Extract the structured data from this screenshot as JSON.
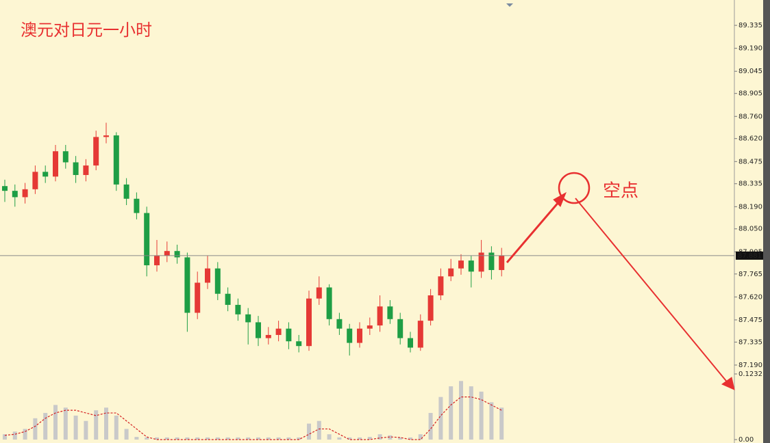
{
  "chart_data": [
    {
      "type": "candlestick",
      "title": "澳元对日元一小时",
      "annotation": "空点",
      "up_color": "#e53935",
      "down_color": "#1e9e45",
      "open": [
        88.32,
        88.29,
        88.25,
        88.3,
        88.41,
        88.38,
        88.54,
        88.47,
        88.39,
        88.45,
        88.63,
        88.64,
        88.33,
        88.24,
        88.15,
        87.82,
        87.88,
        87.91,
        87.87,
        87.52,
        87.71,
        87.8,
        87.64,
        87.57,
        87.51,
        87.46,
        87.36,
        87.38,
        87.42,
        87.34,
        87.31,
        87.61,
        87.68,
        87.48,
        87.42,
        87.33,
        87.42,
        87.44,
        87.56,
        87.48,
        87.36,
        87.3,
        87.47,
        87.63,
        87.75,
        87.8,
        87.85,
        87.78,
        87.9,
        87.79
      ],
      "high": [
        88.36,
        88.33,
        88.34,
        88.45,
        88.45,
        88.58,
        88.58,
        88.51,
        88.49,
        88.67,
        88.72,
        88.66,
        88.37,
        88.28,
        88.19,
        87.98,
        87.97,
        87.95,
        87.9,
        87.78,
        87.88,
        87.84,
        87.68,
        87.61,
        87.55,
        87.5,
        87.43,
        87.47,
        87.46,
        87.38,
        87.66,
        87.75,
        87.7,
        87.52,
        87.45,
        87.46,
        87.49,
        87.63,
        87.6,
        87.52,
        87.4,
        87.51,
        87.67,
        87.8,
        87.86,
        87.89,
        87.88,
        87.98,
        87.94,
        87.93
      ],
      "low": [
        88.22,
        88.19,
        88.21,
        88.27,
        88.34,
        88.35,
        88.43,
        88.34,
        88.35,
        88.42,
        88.59,
        88.29,
        88.2,
        88.11,
        87.75,
        87.78,
        87.84,
        87.83,
        87.4,
        87.48,
        87.67,
        87.6,
        87.53,
        87.47,
        87.32,
        87.31,
        87.32,
        87.34,
        87.29,
        87.27,
        87.28,
        87.57,
        87.44,
        87.38,
        87.25,
        87.3,
        87.38,
        87.4,
        87.45,
        87.32,
        87.27,
        87.28,
        87.44,
        87.6,
        87.72,
        87.76,
        87.68,
        87.74,
        87.73,
        87.75
      ],
      "close": [
        88.29,
        88.25,
        88.3,
        88.41,
        88.38,
        88.54,
        88.47,
        88.39,
        88.45,
        88.63,
        88.64,
        88.33,
        88.24,
        88.15,
        87.82,
        87.88,
        87.91,
        87.87,
        87.52,
        87.71,
        87.8,
        87.64,
        87.57,
        87.51,
        87.46,
        87.36,
        87.38,
        87.42,
        87.34,
        87.31,
        87.61,
        87.68,
        87.48,
        87.42,
        87.33,
        87.42,
        87.44,
        87.56,
        87.48,
        87.36,
        87.3,
        87.47,
        87.63,
        87.75,
        87.8,
        87.85,
        87.78,
        87.9,
        87.79,
        87.881
      ],
      "last_price": 87.881,
      "ylim": [
        87.164,
        89.495
      ],
      "yticks": [
        89.335,
        {
          "value": 89.19,
          "label": "89.190"
        },
        89.045,
        88.905,
        {
          "value": 88.76,
          "label": "88.760"
        },
        {
          "value": 88.62,
          "label": "88.620"
        },
        88.475,
        88.335,
        {
          "value": 88.19,
          "label": "88.190"
        },
        {
          "value": 88.05,
          "label": "88.050"
        },
        87.905,
        87.765,
        {
          "value": 87.62,
          "label": "87.620"
        },
        87.475,
        87.335,
        {
          "value": 87.19,
          "label": "87.190"
        }
      ]
    },
    {
      "type": "macd",
      "bar_color": "#c9c9c9",
      "line_color": "#d42020",
      "histogram": [
        0.01,
        0.015,
        0.02,
        0.04,
        0.05,
        0.065,
        0.06,
        0.045,
        0.035,
        0.055,
        0.06,
        0.045,
        0.02,
        0.005,
        0.004,
        0.004,
        0.004,
        0.004,
        0.004,
        0.004,
        0.004,
        0.004,
        0.004,
        0.004,
        0.004,
        0.004,
        0.004,
        0.004,
        0.004,
        0.004,
        0.03,
        0.035,
        0.01,
        0.004,
        0.004,
        0.004,
        0.005,
        0.01,
        0.008,
        0.004,
        0.004,
        0.01,
        0.05,
        0.08,
        0.1,
        0.11,
        0.1,
        0.09,
        0.07,
        0.06
      ],
      "signal": [
        0.008,
        0.01,
        0.015,
        0.025,
        0.04,
        0.05,
        0.055,
        0.055,
        0.05,
        0.045,
        0.05,
        0.05,
        0.035,
        0.02,
        0.005,
        0,
        0,
        0,
        0,
        0,
        0,
        0,
        0,
        0,
        0,
        0,
        0,
        0,
        0,
        0,
        0.01,
        0.02,
        0.02,
        0.01,
        0,
        0,
        0,
        0.003,
        0.005,
        0.004,
        0,
        0,
        0.02,
        0.045,
        0.065,
        0.08,
        0.08,
        0.075,
        0.065,
        0.055
      ],
      "ylim": [
        0,
        0.1232
      ],
      "yticks": [
        0.1232,
        {
          "value": 0,
          "label": "0.00"
        }
      ]
    }
  ]
}
